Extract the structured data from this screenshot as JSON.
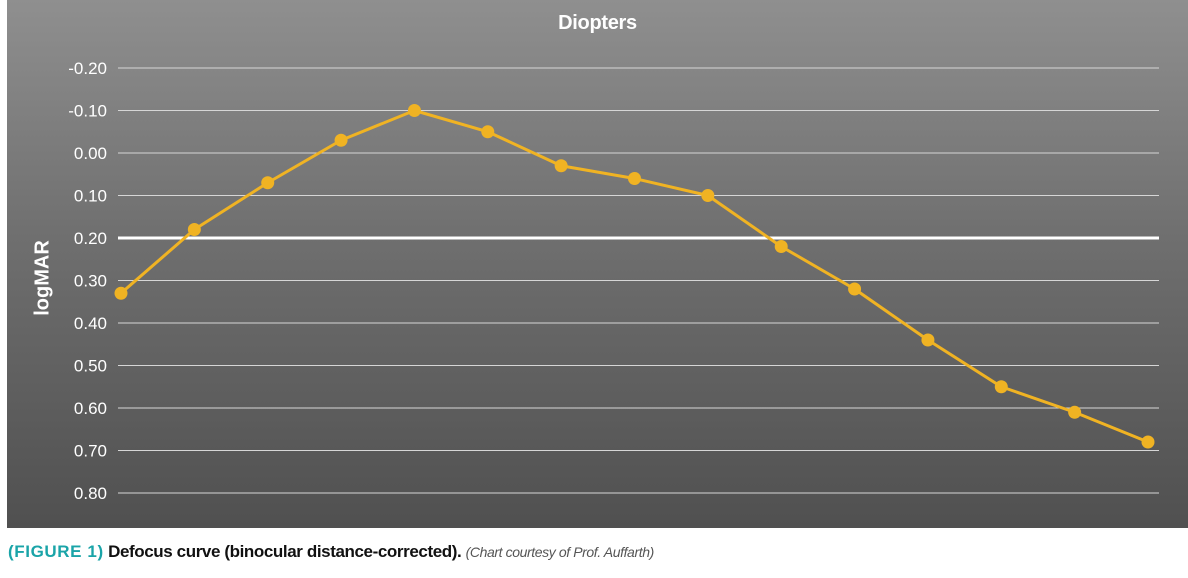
{
  "caption": {
    "label": "(FIGURE 1)",
    "text": "Defocus curve (binocular distance-corrected).",
    "credit": "(Chart courtesy of Prof. Auffarth)"
  },
  "colors": {
    "series": "#f0b323",
    "gridline": "#d6d6d6",
    "highlight_line": "#ffffff",
    "caption_label": "#1aa4a8"
  },
  "chart_data": {
    "type": "line",
    "title": "Diopters",
    "xlabel": "",
    "ylabel": "logMAR",
    "ylim": [
      -0.2,
      0.8
    ],
    "y_inverted": true,
    "y_ticks": [
      "-0.20",
      "-0.10",
      "0.00",
      "0.10",
      "0.20",
      "0.30",
      "0.40",
      "0.50",
      "0.60",
      "0.70",
      "0.80"
    ],
    "y_tick_values": [
      -0.2,
      -0.1,
      0.0,
      0.1,
      0.2,
      0.3,
      0.4,
      0.5,
      0.6,
      0.7,
      0.8
    ],
    "reference_line": 0.2,
    "grid": true,
    "legend": "none",
    "series": [
      {
        "values": [
          0.33,
          0.18,
          0.07,
          -0.03,
          -0.1,
          -0.05,
          0.03,
          0.06,
          0.1,
          0.22,
          0.32,
          0.44,
          0.55,
          0.61,
          0.68
        ]
      }
    ]
  }
}
